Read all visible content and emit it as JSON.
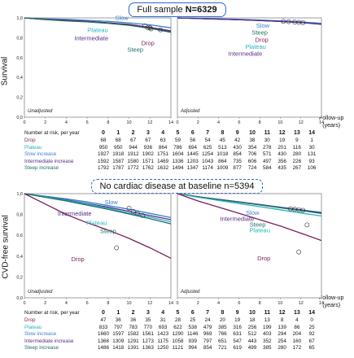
{
  "banners": {
    "top_prefix": "Full sample ",
    "top_bold": "N=6329",
    "bottom": "No cardiac disease at baseline n=5394"
  },
  "y_labels": {
    "top": "Survival",
    "bottom": "CVD-free survival"
  },
  "followup_label": {
    "line1": "Follow-up",
    "line2": "(years)"
  },
  "colors": {
    "Drop": "#7a1f5c",
    "Plateau": "#27b4b9",
    "Slow increase": "#3a7fd0",
    "Intermediate increase": "#5a2a8a",
    "Steep increase": "#1c6f66"
  },
  "chart_data": [
    {
      "id": "top-left",
      "type": "line",
      "panel_note": "Unadjusted",
      "xlim": [
        0,
        14
      ],
      "ylim": [
        0,
        1.0
      ],
      "xticks": [
        0,
        2,
        4,
        6,
        8,
        10,
        12,
        14
      ],
      "yticks": [
        "0,0",
        "0,2",
        "0,4",
        "0,6",
        "0,8",
        "1,0"
      ],
      "series": [
        {
          "name": "Slow",
          "color": "#3a7fd0",
          "x": [
            0,
            2,
            4,
            6,
            8,
            10,
            12,
            14
          ],
          "y": [
            1.0,
            0.99,
            0.985,
            0.975,
            0.965,
            0.95,
            0.93,
            0.9
          ]
        },
        {
          "name": "Plateau",
          "color": "#27b4b9",
          "x": [
            0,
            2,
            4,
            6,
            8,
            10,
            12,
            14
          ],
          "y": [
            1.0,
            0.985,
            0.975,
            0.965,
            0.95,
            0.93,
            0.9,
            0.87
          ]
        },
        {
          "name": "Intermediate",
          "color": "#5a2a8a",
          "x": [
            0,
            2,
            4,
            6,
            8,
            10,
            12,
            14
          ],
          "y": [
            1.0,
            0.985,
            0.975,
            0.965,
            0.95,
            0.935,
            0.905,
            0.87
          ]
        },
        {
          "name": "Drop",
          "color": "#7a1f5c",
          "x": [
            0,
            2,
            4,
            6,
            8,
            10,
            12,
            14
          ],
          "y": [
            1.0,
            0.985,
            0.975,
            0.965,
            0.95,
            0.93,
            0.9,
            0.86
          ]
        },
        {
          "name": "Steep",
          "color": "#1c6f66",
          "x": [
            0,
            2,
            4,
            6,
            8,
            10,
            12,
            14
          ],
          "y": [
            1.0,
            0.983,
            0.97,
            0.96,
            0.945,
            0.925,
            0.895,
            0.855
          ]
        }
      ],
      "labels": [
        {
          "text": "Slow",
          "color": "#3a7fd0",
          "x": 9.3,
          "y": 0.98
        },
        {
          "text": "Plateau",
          "color": "#27b4b9",
          "x": 7.0,
          "y": 0.855
        },
        {
          "text": "Intermediate",
          "color": "#5a2a8a",
          "x": 6.4,
          "y": 0.775
        },
        {
          "text": "Drop",
          "color": "#7a1f5c",
          "x": 11.8,
          "y": 0.725
        },
        {
          "text": "Steep",
          "color": "#1c6f66",
          "x": 10.6,
          "y": 0.66
        }
      ],
      "circles": [
        {
          "x": 11.5,
          "y": 0.92
        },
        {
          "x": 11.8,
          "y": 0.9
        },
        {
          "x": 12.0,
          "y": 0.9
        },
        {
          "x": 12.1,
          "y": 0.89
        },
        {
          "x": 13.0,
          "y": 0.88
        }
      ]
    },
    {
      "id": "top-right",
      "type": "line",
      "panel_note": "Adjusted",
      "xlim": [
        0,
        14
      ],
      "ylim": [
        0,
        1.0
      ],
      "xticks": [
        0,
        2,
        4,
        6,
        8,
        10,
        12,
        14
      ],
      "series": [
        {
          "name": "Slow",
          "color": "#3a7fd0",
          "x": [
            0,
            2,
            4,
            6,
            8,
            10,
            12,
            14
          ],
          "y": [
            1.0,
            0.995,
            0.99,
            0.985,
            0.978,
            0.97,
            0.96,
            0.945
          ]
        },
        {
          "name": "Steep",
          "color": "#1c6f66",
          "x": [
            0,
            2,
            4,
            6,
            8,
            10,
            12,
            14
          ],
          "y": [
            1.0,
            0.994,
            0.988,
            0.982,
            0.975,
            0.966,
            0.955,
            0.94
          ]
        },
        {
          "name": "Drop",
          "color": "#7a1f5c",
          "x": [
            0,
            2,
            4,
            6,
            8,
            10,
            12,
            14
          ],
          "y": [
            1.0,
            0.994,
            0.988,
            0.982,
            0.974,
            0.965,
            0.953,
            0.935
          ]
        },
        {
          "name": "Plateau",
          "color": "#27b4b9",
          "x": [
            0,
            2,
            4,
            6,
            8,
            10,
            12,
            14
          ],
          "y": [
            1.0,
            0.994,
            0.988,
            0.982,
            0.975,
            0.966,
            0.955,
            0.94
          ]
        },
        {
          "name": "Intermediate",
          "color": "#5a2a8a",
          "x": [
            0,
            2,
            4,
            6,
            8,
            10,
            12,
            14
          ],
          "y": [
            1.0,
            0.994,
            0.988,
            0.982,
            0.974,
            0.965,
            0.954,
            0.937
          ]
        }
      ],
      "labels": [
        {
          "text": "Slow",
          "color": "#3a7fd0",
          "x": 8.3,
          "y": 0.9
        },
        {
          "text": "Steep",
          "color": "#1c6f66",
          "x": 8.0,
          "y": 0.83
        },
        {
          "text": "Drop",
          "color": "#7a1f5c",
          "x": 8.2,
          "y": 0.76
        },
        {
          "text": "Plateau",
          "color": "#27b4b9",
          "x": 7.6,
          "y": 0.69
        },
        {
          "text": "Intermediate",
          "color": "#5a2a8a",
          "x": 6.6,
          "y": 0.62
        }
      ],
      "circles": [
        {
          "x": 10.3,
          "y": 0.965
        },
        {
          "x": 10.8,
          "y": 0.962
        },
        {
          "x": 11.4,
          "y": 0.958
        },
        {
          "x": 11.8,
          "y": 0.955
        },
        {
          "x": 12.2,
          "y": 0.952
        }
      ]
    },
    {
      "id": "bottom-left",
      "type": "line",
      "panel_note": "Unadjusted",
      "xlim": [
        0,
        14
      ],
      "ylim": [
        0,
        1.0
      ],
      "xticks": [
        0,
        2,
        4,
        6,
        8,
        10,
        12,
        14
      ],
      "yticks": [
        "0,0",
        "0,2",
        "0,4",
        "0,6",
        "0,8",
        "1,0"
      ],
      "series": [
        {
          "name": "Slow",
          "color": "#3a7fd0",
          "x": [
            0,
            2,
            4,
            6,
            8,
            10,
            12,
            14
          ],
          "y": [
            1.0,
            0.975,
            0.95,
            0.92,
            0.885,
            0.85,
            0.81,
            0.77
          ]
        },
        {
          "name": "Intermediate",
          "color": "#5a2a8a",
          "x": [
            0,
            2,
            4,
            6,
            8,
            10,
            12,
            14
          ],
          "y": [
            1.0,
            0.97,
            0.94,
            0.905,
            0.87,
            0.83,
            0.79,
            0.75
          ]
        },
        {
          "name": "Plateau",
          "color": "#27b4b9",
          "x": [
            0,
            2,
            4,
            6,
            8,
            10,
            12,
            14
          ],
          "y": [
            1.0,
            0.97,
            0.935,
            0.9,
            0.86,
            0.815,
            0.775,
            0.73
          ]
        },
        {
          "name": "Steep",
          "color": "#1c6f66",
          "x": [
            0,
            2,
            4,
            6,
            8,
            10,
            12,
            14
          ],
          "y": [
            1.0,
            0.965,
            0.93,
            0.89,
            0.85,
            0.805,
            0.76,
            0.71
          ]
        },
        {
          "name": "Drop",
          "color": "#7a1f5c",
          "x": [
            0,
            2,
            4,
            6,
            8,
            10,
            12,
            14
          ],
          "y": [
            1.0,
            0.9,
            0.8,
            0.72,
            0.65,
            0.57,
            0.48,
            0.38
          ]
        }
      ],
      "labels": [
        {
          "text": "Slow",
          "color": "#3a7fd0",
          "x": 8.3,
          "y": 0.9
        },
        {
          "text": "Intermediate",
          "color": "#5a2a8a",
          "x": 4.8,
          "y": 0.79
        },
        {
          "text": "Plateau",
          "color": "#27b4b9",
          "x": 6.9,
          "y": 0.7
        },
        {
          "text": "Steep",
          "color": "#1c6f66",
          "x": 8.0,
          "y": 0.62
        },
        {
          "text": "Drop",
          "color": "#7a1f5c",
          "x": 5.1,
          "y": 0.35
        }
      ],
      "circles": [
        {
          "x": 10.0,
          "y": 0.86
        },
        {
          "x": 10.4,
          "y": 0.83
        },
        {
          "x": 10.8,
          "y": 0.81
        },
        {
          "x": 11.3,
          "y": 0.79
        },
        {
          "x": 8.8,
          "y": 0.48
        }
      ]
    },
    {
      "id": "bottom-right",
      "type": "line",
      "panel_note": "Adjusted",
      "xlim": [
        0,
        14
      ],
      "ylim": [
        0,
        1.0
      ],
      "xticks": [
        0,
        2,
        4,
        6,
        8,
        10,
        12,
        14
      ],
      "series": [
        {
          "name": "Slow",
          "color": "#3a7fd0",
          "x": [
            0,
            2,
            4,
            6,
            8,
            10,
            12,
            14
          ],
          "y": [
            1.0,
            0.97,
            0.945,
            0.92,
            0.895,
            0.87,
            0.845,
            0.82
          ]
        },
        {
          "name": "Intermediate",
          "color": "#5a2a8a",
          "x": [
            0,
            2,
            4,
            6,
            8,
            10,
            12,
            14
          ],
          "y": [
            1.0,
            0.97,
            0.945,
            0.92,
            0.895,
            0.868,
            0.842,
            0.815
          ]
        },
        {
          "name": "Steep",
          "color": "#1c6f66",
          "x": [
            0,
            2,
            4,
            6,
            8,
            10,
            12,
            14
          ],
          "y": [
            1.0,
            0.97,
            0.943,
            0.918,
            0.892,
            0.865,
            0.838,
            0.81
          ]
        },
        {
          "name": "Plateau",
          "color": "#27b4b9",
          "x": [
            0,
            2,
            4,
            6,
            8,
            10,
            12,
            14
          ],
          "y": [
            1.0,
            0.965,
            0.935,
            0.905,
            0.875,
            0.845,
            0.815,
            0.785
          ]
        },
        {
          "name": "Drop",
          "color": "#7a1f5c",
          "x": [
            0,
            2,
            4,
            6,
            8,
            10,
            12,
            14
          ],
          "y": [
            1.0,
            0.93,
            0.87,
            0.81,
            0.75,
            0.69,
            0.62,
            0.55
          ]
        }
      ],
      "labels": [
        {
          "text": "Slow",
          "color": "#3a7fd0",
          "x": 7.3,
          "y": 0.795
        },
        {
          "text": "Intermediate",
          "color": "#5a2a8a",
          "x": 5.8,
          "y": 0.74
        },
        {
          "text": "Steep",
          "color": "#1c6f66",
          "x": 7.8,
          "y": 0.685
        },
        {
          "text": "Plateau",
          "color": "#27b4b9",
          "x": 8.0,
          "y": 0.63
        },
        {
          "text": "Drop",
          "color": "#7a1f5c",
          "x": 8.4,
          "y": 0.36
        }
      ],
      "circles": [
        {
          "x": 11.0,
          "y": 0.855
        },
        {
          "x": 11.4,
          "y": 0.85
        },
        {
          "x": 11.8,
          "y": 0.845
        },
        {
          "x": 12.2,
          "y": 0.84
        },
        {
          "x": 12.6,
          "y": 0.7
        },
        {
          "x": 11.8,
          "y": 0.44
        }
      ]
    }
  ],
  "risk_tables": [
    {
      "header_label": "Number at risk, per year",
      "years": [
        "0",
        "1",
        "2",
        "3",
        "4",
        "5",
        "6",
        "7",
        "8",
        "9",
        "10",
        "11",
        "12",
        "13",
        "14"
      ],
      "rows": [
        {
          "label": "Drop",
          "color": "#7a1f5c",
          "values": [
            "68",
            "68",
            "67",
            "67",
            "63",
            "59",
            "56",
            "54",
            "45",
            "42",
            "38",
            "30",
            "19",
            "9",
            "1"
          ]
        },
        {
          "label": "Plateau",
          "color": "#27b4b9",
          "values": [
            "950",
            "950",
            "944",
            "936",
            "864",
            "786",
            "694",
            "625",
            "513",
            "430",
            "354",
            "278",
            "201",
            "116",
            "30"
          ]
        },
        {
          "label": "Slow increase",
          "color": "#3a7fd0",
          "values": [
            "1927",
            "1918",
            "1912",
            "1902",
            "1751",
            "1604",
            "1445",
            "1254",
            "1018",
            "854",
            "706",
            "571",
            "430",
            "280",
            "131"
          ]
        },
        {
          "label": "Intermediate increase",
          "color": "#5a2a8a",
          "values": [
            "1592",
            "1587",
            "1580",
            "1571",
            "1469",
            "1336",
            "1203",
            "1043",
            "864",
            "735",
            "606",
            "497",
            "356",
            "226",
            "93"
          ]
        },
        {
          "label": "Steep increase",
          "color": "#1c6f66",
          "values": [
            "1792",
            "1787",
            "1772",
            "1762",
            "1632",
            "1494",
            "1347",
            "1174",
            "1009",
            "877",
            "724",
            "584",
            "435",
            "267",
            "106"
          ]
        }
      ]
    },
    {
      "header_label": "Number at risk, per year",
      "years": [
        "0",
        "1",
        "2",
        "3",
        "4",
        "5",
        "6",
        "7",
        "8",
        "9",
        "10",
        "11",
        "12",
        "13",
        "14"
      ],
      "rows": [
        {
          "label": "Drop",
          "color": "#7a1f5c",
          "values": [
            "47",
            "36",
            "36",
            "35",
            "31",
            "28",
            "25",
            "24",
            "20",
            "19",
            "18",
            "13",
            "8",
            "4",
            "0"
          ]
        },
        {
          "label": "Plateau",
          "color": "#27b4b9",
          "values": [
            "833",
            "797",
            "783",
            "770",
            "693",
            "622",
            "538",
            "479",
            "385",
            "316",
            "256",
            "199",
            "139",
            "86",
            "25"
          ]
        },
        {
          "label": "Slow increase",
          "color": "#3a7fd0",
          "values": [
            "1660",
            "1597",
            "1582",
            "1561",
            "1423",
            "1290",
            "1146",
            "969",
            "766",
            "631",
            "512",
            "403",
            "294",
            "204",
            "92"
          ]
        },
        {
          "label": "Intermediate increase",
          "color": "#5a2a8a",
          "values": [
            "1368",
            "1309",
            "1291",
            "1273",
            "1175",
            "1058",
            "939",
            "797",
            "651",
            "547",
            "443",
            "352",
            "254",
            "160",
            "67"
          ]
        },
        {
          "label": "Steep increase",
          "color": "#1c6f66",
          "values": [
            "1486",
            "1418",
            "1391",
            "1363",
            "1250",
            "1121",
            "994",
            "854",
            "721",
            "619",
            "499",
            "385",
            "280",
            "172",
            "65"
          ]
        }
      ]
    }
  ]
}
